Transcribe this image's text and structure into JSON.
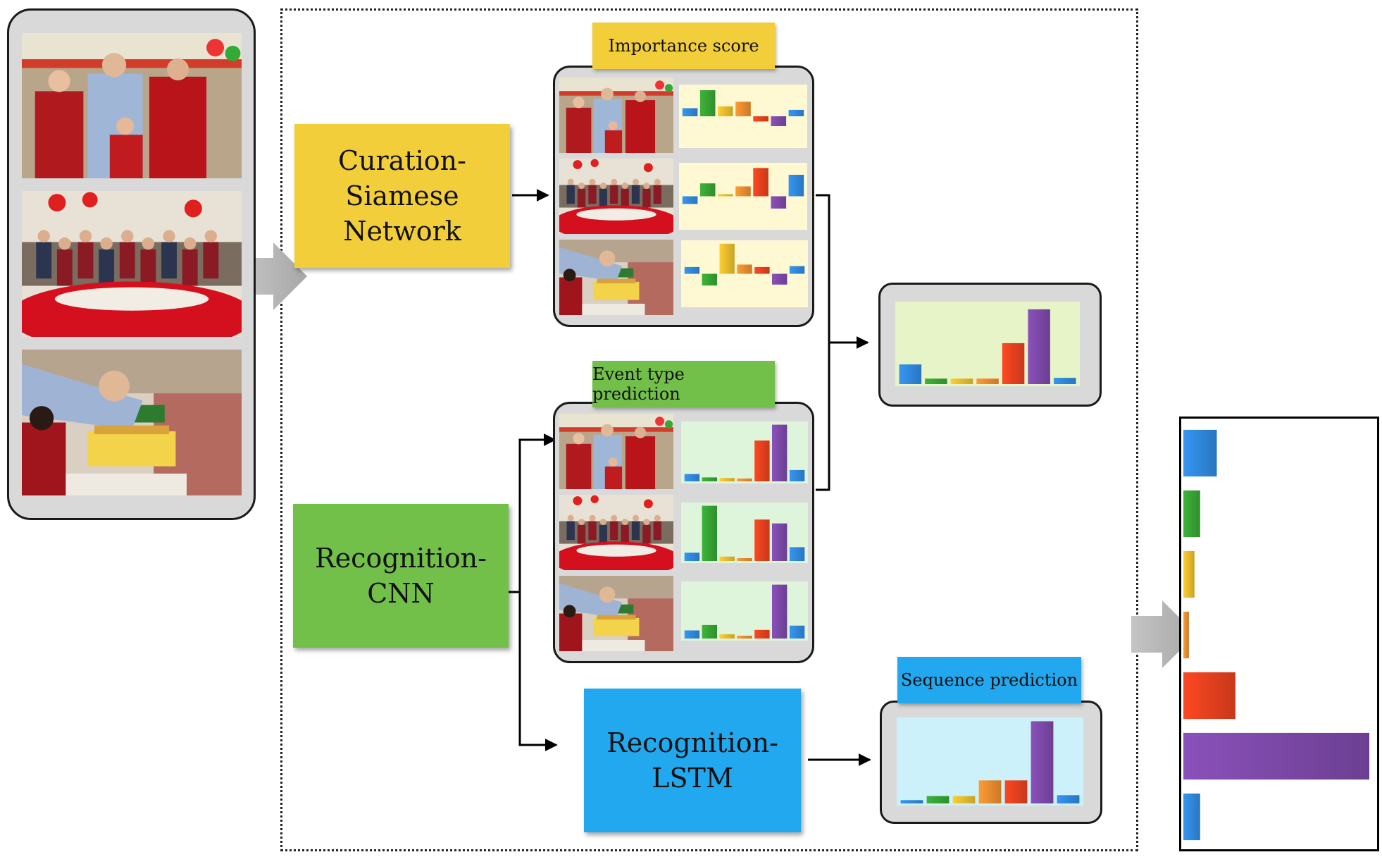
{
  "modules": {
    "curation": {
      "label": "Curation-\nSiamese Network",
      "color": "#F2CE3A"
    },
    "recognition_cnn": {
      "label": "Recognition-CNN",
      "color": "#72BF4A"
    },
    "recognition_lstm": {
      "label": "Recognition-LSTM",
      "color": "#22A8EE"
    }
  },
  "tags": {
    "importance": {
      "label": "Importance score",
      "color": "#F2CE3A"
    },
    "event_type": {
      "label": "Event type prediction",
      "color": "#72BF4A"
    },
    "sequence": {
      "label": "Sequence prediction",
      "color": "#22A8EE"
    }
  },
  "palette": {
    "blue": "#2F86D9",
    "green": "#36A133",
    "yellow": "#E3B92C",
    "orange": "#E68A2E",
    "red": "#E2401E",
    "purple": "#7B48A6",
    "bg_importance": "#FEF9D2",
    "bg_event": "#DFF5DB",
    "bg_fused": "#E6F4C7",
    "bg_sequence": "#CDF1FA",
    "panel": "#D9D9D9"
  },
  "photos": [
    "toast",
    "dinner-table",
    "birthday-cake"
  ],
  "icons": [
    "input-arrow-icon",
    "output-arrow-icon"
  ],
  "chart_data": [
    {
      "type": "bar",
      "name": "importance-toast",
      "values": [
        0.28,
        0.9,
        0.34,
        0.5,
        -0.18,
        -0.34,
        0.22
      ]
    },
    {
      "type": "bar",
      "name": "importance-dinner",
      "values": [
        -0.25,
        0.42,
        0.0,
        0.32,
        0.92,
        -0.4,
        0.7
      ]
    },
    {
      "type": "bar",
      "name": "importance-cake",
      "values": [
        0.22,
        -0.38,
        0.98,
        0.3,
        0.22,
        -0.35,
        0.25
      ]
    },
    {
      "type": "bar",
      "name": "fused-importance-weighted",
      "values": [
        0.25,
        0.07,
        0.07,
        0.07,
        0.52,
        0.95,
        0.08
      ]
    },
    {
      "type": "bar",
      "name": "event-toast",
      "values": [
        0.13,
        0.07,
        0.06,
        0.0,
        0.72,
        1.0,
        0.2
      ]
    },
    {
      "type": "bar",
      "name": "event-dinner",
      "values": [
        0.15,
        1.0,
        0.08,
        0.0,
        0.75,
        0.68,
        0.25
      ]
    },
    {
      "type": "bar",
      "name": "event-cake",
      "values": [
        0.15,
        0.25,
        0.08,
        0.0,
        0.16,
        1.0,
        0.24
      ]
    },
    {
      "type": "bar",
      "name": "sequence-prediction",
      "values": [
        0.04,
        0.09,
        0.09,
        0.28,
        0.28,
        1.0,
        0.1
      ]
    },
    {
      "type": "bar",
      "name": "final-event-probability",
      "orientation": "horizontal",
      "values": [
        0.18,
        0.09,
        0.06,
        0.03,
        0.28,
        1.0,
        0.09
      ]
    }
  ]
}
